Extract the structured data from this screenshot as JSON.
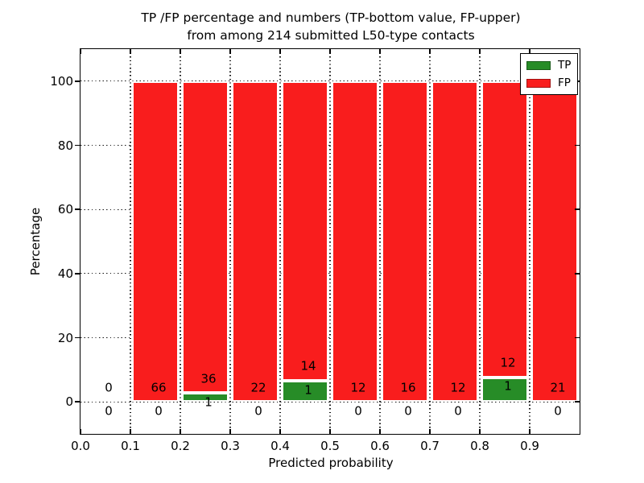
{
  "title": {
    "line1": "TP /FP percentage and numbers (TP-bottom value, FP-upper)",
    "line2": "from among 214 submitted L50-type contacts"
  },
  "axes": {
    "xlabel": "Predicted probability",
    "ylabel": "Percentage",
    "xticks": [
      "0.0",
      "0.1",
      "0.2",
      "0.3",
      "0.4",
      "0.5",
      "0.6",
      "0.7",
      "0.8",
      "0.9"
    ],
    "yticks": [
      "0",
      "20",
      "40",
      "60",
      "80",
      "100"
    ],
    "xlim": [
      0.0,
      1.0
    ],
    "ylim": [
      -10,
      110
    ],
    "grid": "dotted"
  },
  "legend": {
    "position": "upper-right",
    "items": [
      {
        "label": "TP",
        "color": "#278c27"
      },
      {
        "label": "FP",
        "color": "#f91d1d"
      }
    ]
  },
  "colors": {
    "tp_green": "#278c27",
    "fp_red": "#f91d1d",
    "bar_edge": "#ffffff",
    "grid": "#111111",
    "spine": "#000000",
    "background": "#ffffff"
  },
  "chart_data": {
    "type": "bar",
    "stacked": true,
    "normalized_to_percent": 100,
    "bin_width": 0.1,
    "bin_starts": [
      0.0,
      0.1,
      0.2,
      0.3,
      0.4,
      0.5,
      0.6,
      0.7,
      0.8,
      0.9
    ],
    "categories": [
      "0.0-0.1",
      "0.1-0.2",
      "0.2-0.3",
      "0.3-0.4",
      "0.4-0.5",
      "0.5-0.6",
      "0.6-0.7",
      "0.7-0.8",
      "0.8-0.9",
      "0.9-1.0"
    ],
    "series": [
      {
        "name": "TP",
        "color": "#278c27",
        "counts": [
          0,
          0,
          1,
          0,
          1,
          0,
          0,
          0,
          1,
          0
        ]
      },
      {
        "name": "FP",
        "color": "#f91d1d",
        "counts": [
          0,
          66,
          36,
          22,
          14,
          12,
          16,
          12,
          12,
          21
        ]
      }
    ],
    "tp_percent": [
      0,
      0,
      2.7,
      0,
      6.67,
      0,
      0,
      0,
      7.69,
      0
    ],
    "fp_percent": [
      0,
      100,
      97.3,
      100,
      93.33,
      100,
      100,
      100,
      92.31,
      100
    ],
    "title": "TP /FP percentage and numbers (TP-bottom value, FP-upper) from among 214 submitted L50-type contacts",
    "xlabel": "Predicted probability",
    "ylabel": "Percentage"
  }
}
